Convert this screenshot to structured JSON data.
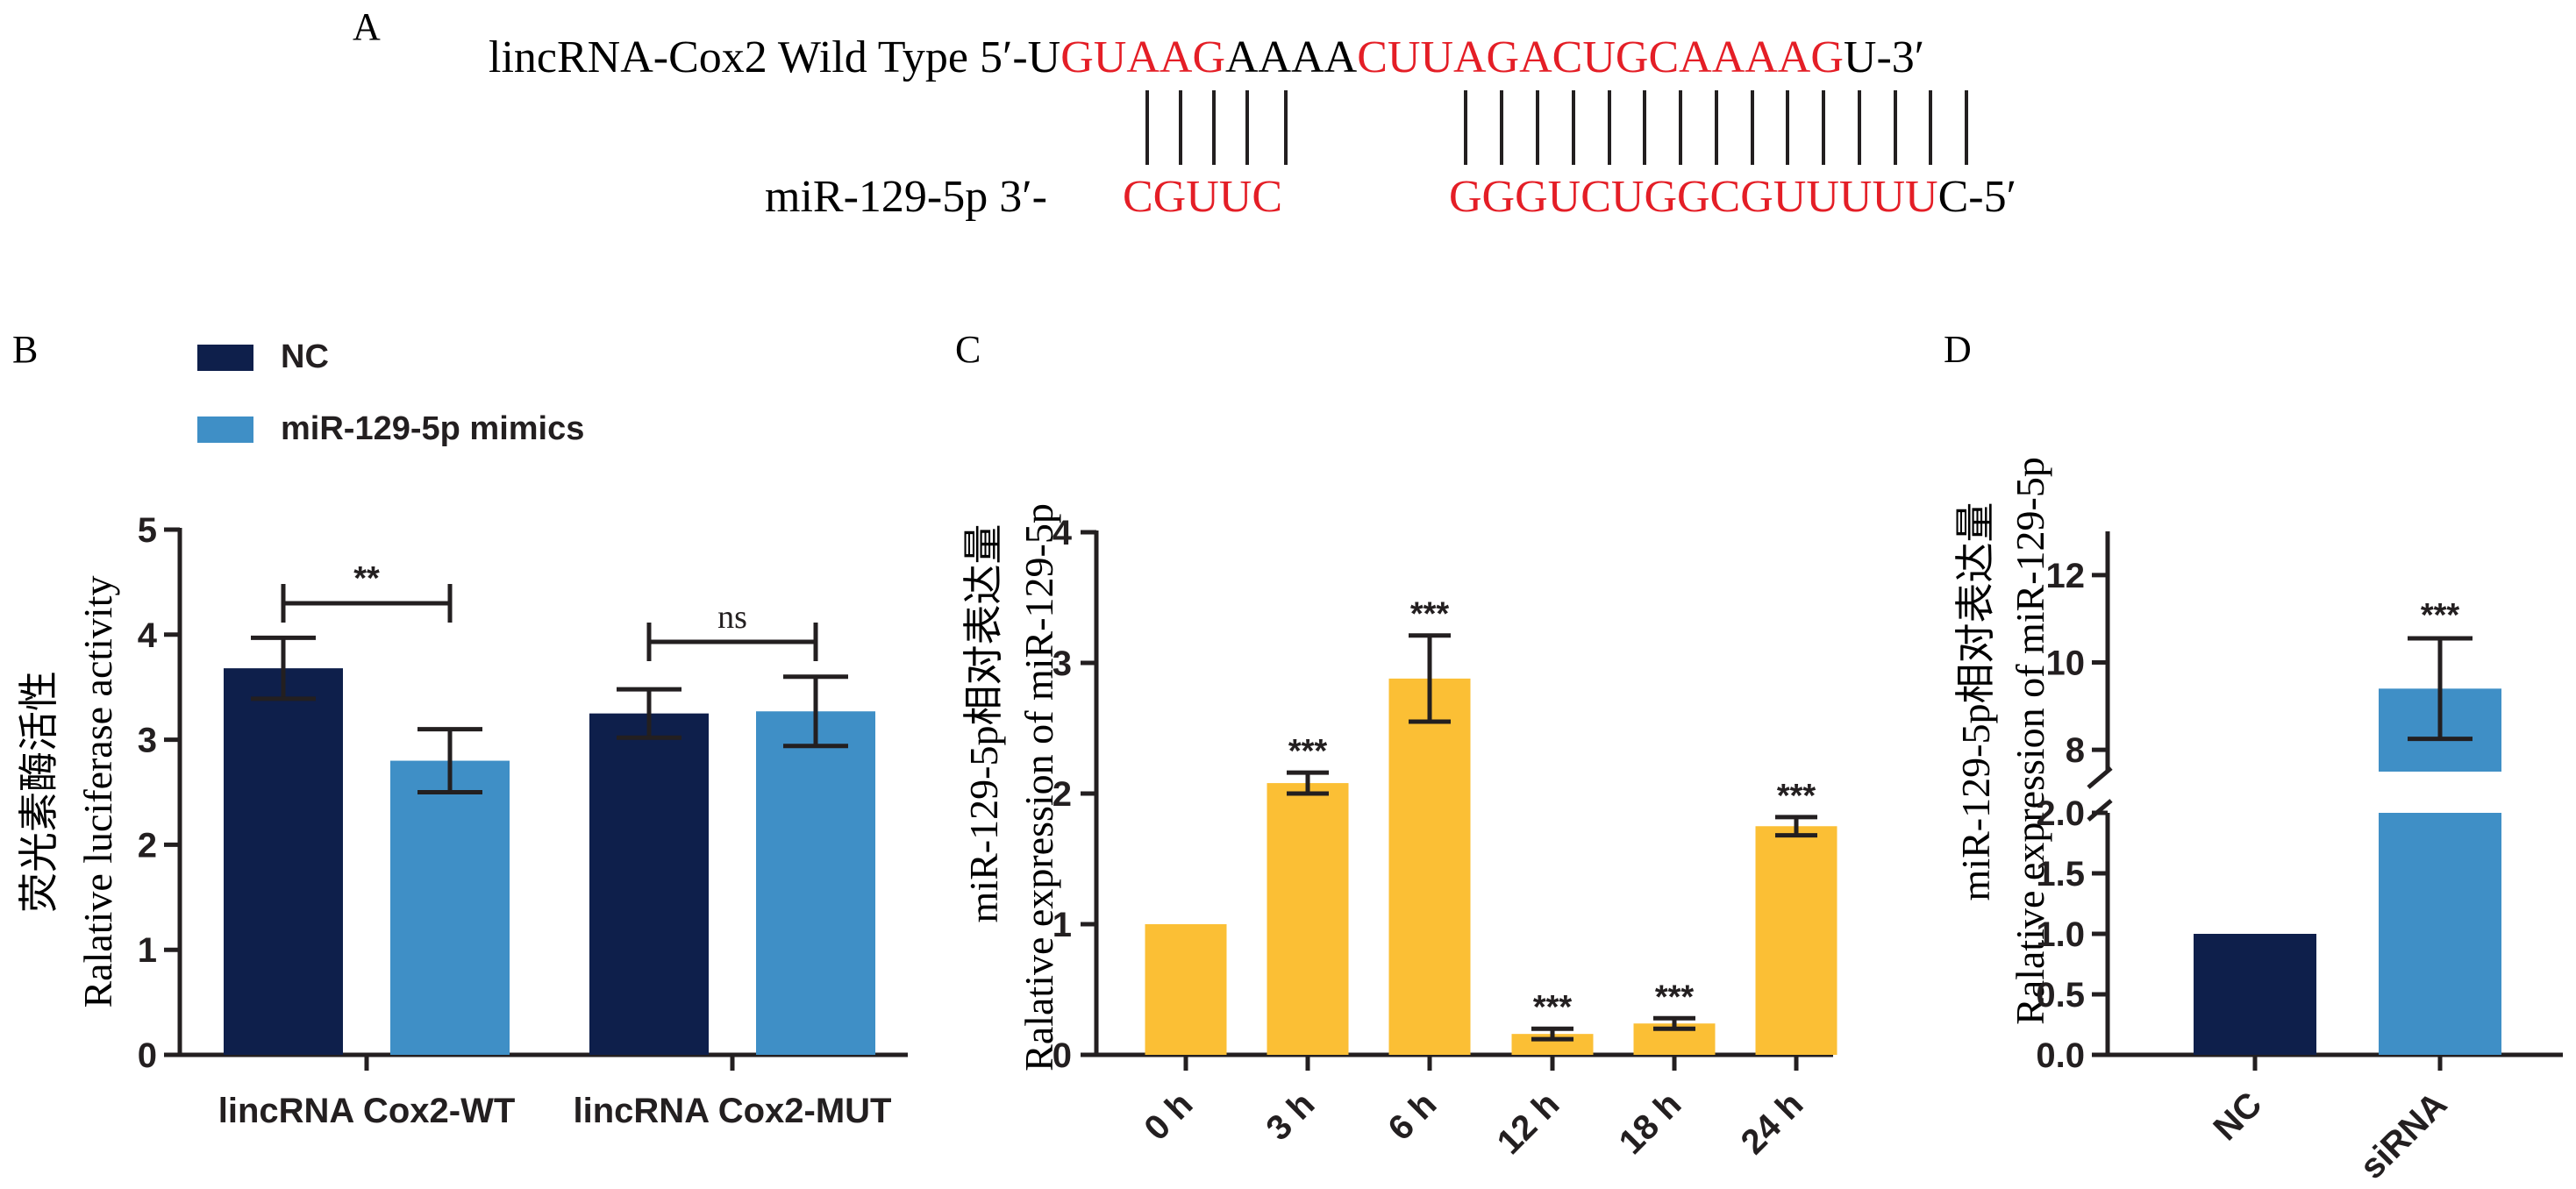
{
  "panel_a": {
    "label": "A",
    "lnc_prefix": "lincRNA-Cox2 Wild Type 5′-U",
    "lnc_red1": "GUAAG",
    "lnc_mid": "AAAA",
    "lnc_red2": "CUUAGACUGCAAAAG",
    "lnc_suffix": "U-3′",
    "mir_prefix": "miR-129-5p 3′-",
    "mir_red1": "CGUUC",
    "mir_red2": "GGGUCUGGCGUUUUU",
    "mir_suffix": "C-5′",
    "red_color": "#e41e26"
  },
  "colors": {
    "navy": "#0e1f4b",
    "blue": "#3f8fc6",
    "yellow": "#fbbf35",
    "ink": "#231f20"
  },
  "chart_data": [
    {
      "panel": "B",
      "type": "bar",
      "ylabel": "Ralative luciferase activity",
      "ylabel_cn": "荧光素酶活性",
      "ylim": [
        0,
        5
      ],
      "yticks": [
        "0",
        "1",
        "2",
        "3",
        "4",
        "5"
      ],
      "legend": {
        "placement": "top-left",
        "entries": [
          "NC",
          "miR-129-5p mimics"
        ]
      },
      "categories": [
        "lincRNA Cox2-WT",
        "lincRNA Cox2-MUT"
      ],
      "series": [
        {
          "name": "NC",
          "color": "#0e1f4b",
          "values": [
            3.68,
            3.25
          ],
          "errors": [
            0.29,
            0.23
          ]
        },
        {
          "name": "miR-129-5p mimics",
          "color": "#3f8fc6",
          "values": [
            2.8,
            3.27
          ],
          "errors": [
            0.3,
            0.33
          ]
        }
      ],
      "significance": [
        {
          "label": "**",
          "group": 0
        },
        {
          "label": "ns",
          "group": 1
        }
      ]
    },
    {
      "panel": "C",
      "type": "bar",
      "ylabel": "Ralative expression of miR-129-5p",
      "ylabel_cn": "miR-129-5p相对表达量",
      "ylim": [
        0,
        4
      ],
      "yticks": [
        "0",
        "1",
        "2",
        "3",
        "4"
      ],
      "categories": [
        "0 h",
        "3 h",
        "6 h",
        "12 h",
        "18 h",
        "24 h"
      ],
      "values": [
        1.0,
        2.08,
        2.88,
        0.16,
        0.24,
        1.75
      ],
      "errors": [
        0,
        0.08,
        0.33,
        0.04,
        0.04,
        0.07
      ],
      "annotations": [
        "",
        "***",
        "***",
        "***",
        "***",
        "***"
      ],
      "color": "#fbbf35"
    },
    {
      "panel": "D",
      "type": "bar",
      "ylabel": "Ralative expression of miR-129-5p",
      "ylabel_cn": "miR-129-5p相对表达量",
      "broken_axis": {
        "lower": [
          0,
          2.0
        ],
        "upper": [
          7.5,
          13
        ]
      },
      "yticks_lower": [
        "0.0",
        "0.5",
        "1.0",
        "1.5",
        "2.0"
      ],
      "yticks_upper": [
        "8",
        "10",
        "12"
      ],
      "categories": [
        "NC",
        "siRNA"
      ],
      "values": [
        1.0,
        9.4
      ],
      "errors": [
        0,
        1.15
      ],
      "annotations": [
        "",
        "***"
      ],
      "colors": [
        "#0e1f4b",
        "#3f8fc6"
      ]
    }
  ]
}
